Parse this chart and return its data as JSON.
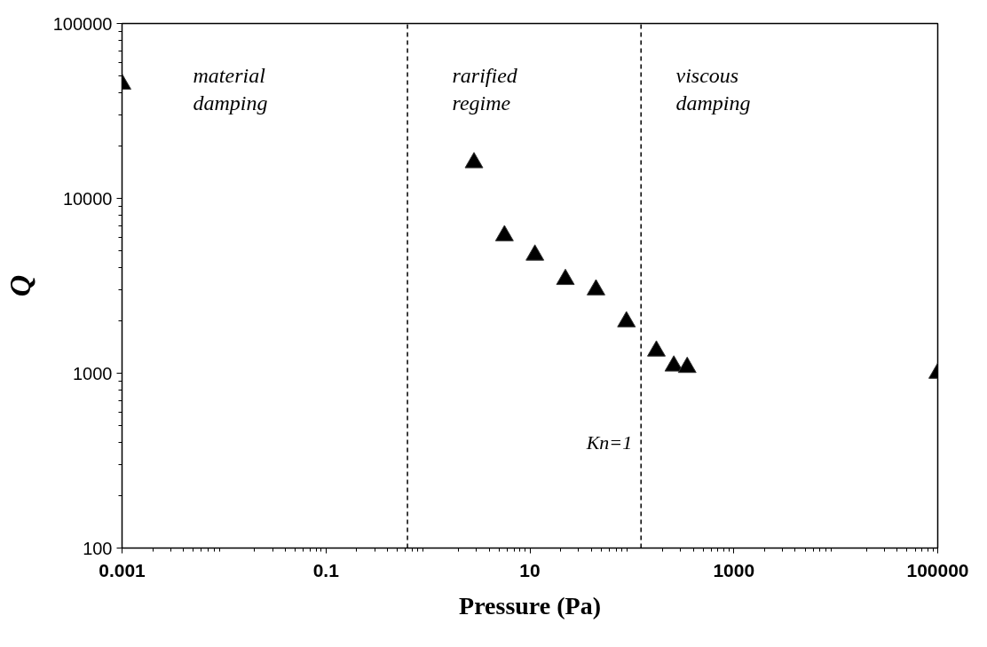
{
  "chart_data": {
    "type": "scatter",
    "xlabel": "Pressure (Pa)",
    "ylabel": "Q",
    "log": "xy",
    "grid": false,
    "marker": "triangle",
    "xlim": [
      0.001,
      100000
    ],
    "ylim": [
      100,
      100000
    ],
    "xticks": [
      0.001,
      0.1,
      10,
      1000,
      100000
    ],
    "yticks": [
      100,
      1000,
      10000,
      100000
    ],
    "series": [
      {
        "color": "#000000",
        "x": [
          0.001,
          2.83,
          5.63,
          11.2,
          22.3,
          44.5,
          88.5,
          174,
          258,
          349,
          100000
        ],
        "values": [
          45000,
          16000,
          6120,
          4740,
          3440,
          3000,
          1970,
          1340,
          1100,
          1080,
          1000
        ]
      }
    ],
    "ref_lines": [
      {
        "axis": "x",
        "value": 0.63,
        "label": null,
        "line_style": "dashed"
      },
      {
        "axis": "x",
        "value": 123,
        "label": null,
        "line_style": "dashed"
      }
    ],
    "annotations": [
      "material\ndamping",
      "rarified\nregime",
      "viscous\ndamping",
      {
        "text": "Kn=1",
        "x": 123,
        "y": 400
      }
    ]
  }
}
